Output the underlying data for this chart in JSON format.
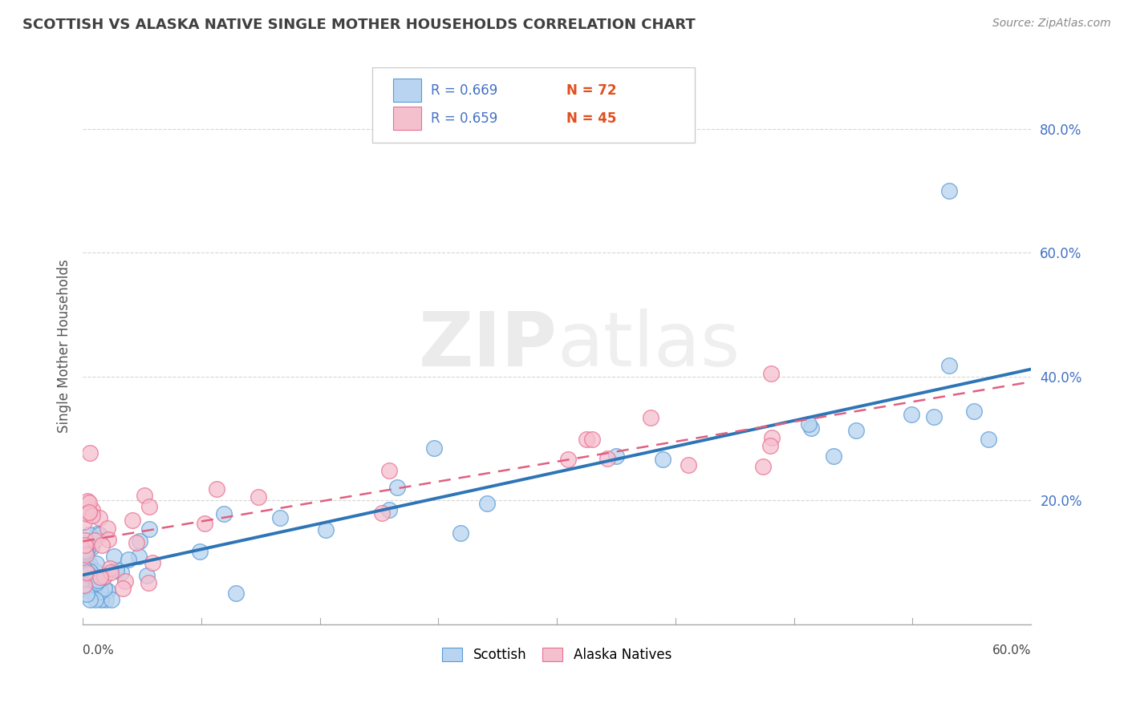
{
  "title": "SCOTTISH VS ALASKA NATIVE SINGLE MOTHER HOUSEHOLDS CORRELATION CHART",
  "source": "Source: ZipAtlas.com",
  "ylabel": "Single Mother Households",
  "watermark": "ZIPatlas",
  "scottish_fill_color": "#b8d4f0",
  "scottish_edge_color": "#5b9bd5",
  "alaska_fill_color": "#f5c0ce",
  "alaska_edge_color": "#e87090",
  "scottish_line_color": "#2e75b6",
  "alaska_line_color": "#e06080",
  "legend_r1": "R = 0.669",
  "legend_n1": "N = 72",
  "legend_r2": "R = 0.659",
  "legend_n2": "N = 45",
  "r_color": "#4472c4",
  "n_color": "#e05020",
  "xmin": 0.0,
  "xmax": 0.6,
  "ymin": 0.0,
  "ymax": 0.9,
  "yticks": [
    0.0,
    0.2,
    0.4,
    0.6,
    0.8
  ],
  "ytick_labels": [
    "",
    "20.0%",
    "40.0%",
    "60.0%",
    "80.0%"
  ],
  "background_color": "#ffffff",
  "grid_color": "#cccccc",
  "title_color": "#404040",
  "axis_color": "#aaaaaa",
  "source_color": "#888888",
  "ylabel_color": "#555555"
}
